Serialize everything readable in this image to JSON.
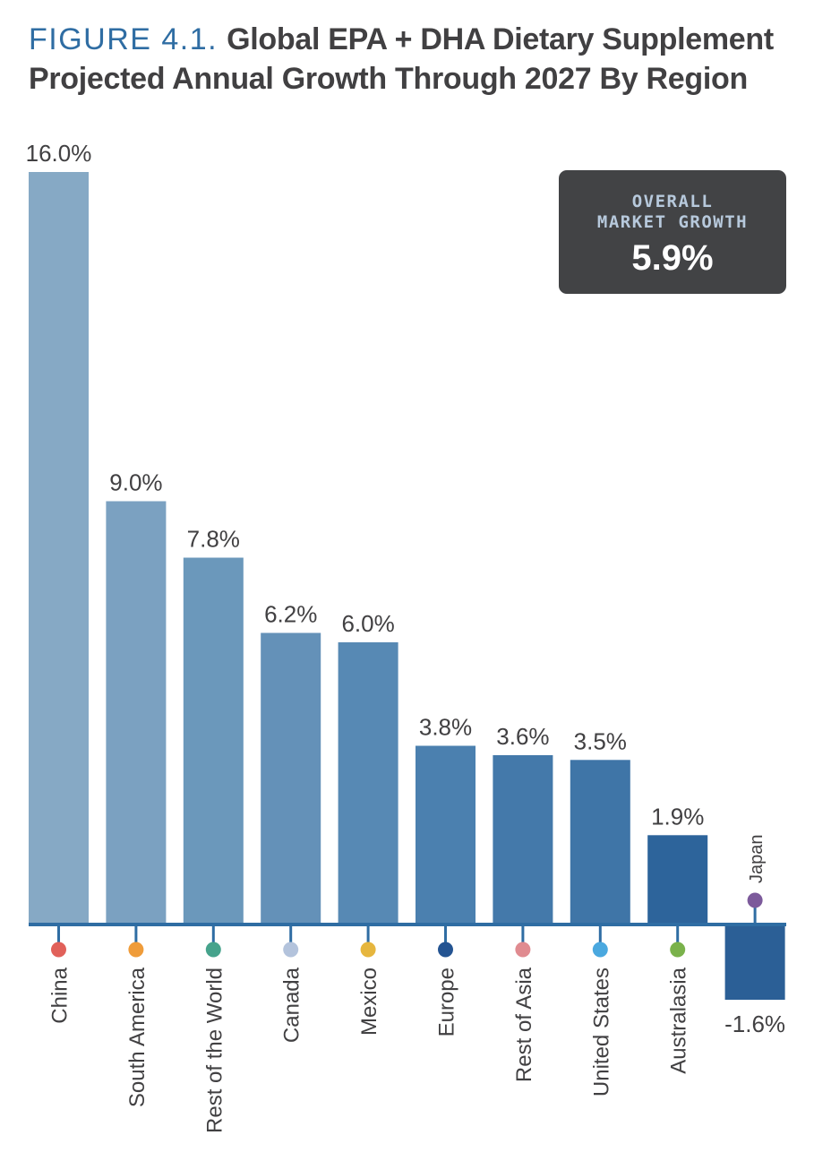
{
  "title": {
    "figure_label": "FIGURE 4.1.",
    "line1": "Global EPA + DHA Dietary Supplement",
    "line2": "Projected Annual Growth Through 2027 By Region"
  },
  "summary": {
    "label": "OVERALL\nMARKET GROWTH",
    "value": "5.9%"
  },
  "chart_data": {
    "type": "bar",
    "title": "Global EPA + DHA Dietary Supplement Projected Annual Growth Through 2027 By Region",
    "categories": [
      "China",
      "South America",
      "Rest of the World",
      "Canada",
      "Mexico",
      "Europe",
      "Rest of Asia",
      "United States",
      "Australasia",
      "Japan"
    ],
    "values": [
      16.0,
      9.0,
      7.8,
      6.2,
      6.0,
      3.8,
      3.6,
      3.5,
      1.9,
      -1.6
    ],
    "value_labels": [
      "16.0%",
      "9.0%",
      "7.8%",
      "6.2%",
      "6.0%",
      "3.8%",
      "3.6%",
      "3.5%",
      "1.9%",
      "-1.6%"
    ],
    "unit": "%",
    "ylim": [
      -1.6,
      16.0
    ],
    "grid": false,
    "legend": "none",
    "bar_colors": [
      "#86a9c5",
      "#7ba1c1",
      "#6b98bb",
      "#6491b8",
      "#5789b4",
      "#4b80af",
      "#4479aa",
      "#3f75a7",
      "#2d649b",
      "#2b5f96"
    ],
    "category_dot_colors": [
      "#e1615a",
      "#ef9c3a",
      "#46a38c",
      "#b3c3dc",
      "#e6b63e",
      "#245492",
      "#e08b90",
      "#4aa8df",
      "#7ab24b",
      "#7c5a9b"
    ],
    "axis_color": "#2f6da3"
  }
}
